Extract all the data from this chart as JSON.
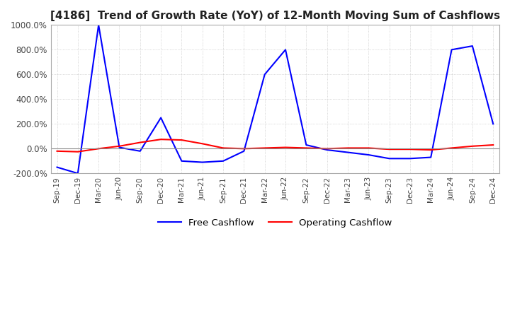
{
  "title": "[4186]  Trend of Growth Rate (YoY) of 12-Month Moving Sum of Cashflows",
  "title_fontsize": 11,
  "ylim": [
    -200,
    1000
  ],
  "yticks": [
    -200,
    0,
    200,
    400,
    600,
    800,
    1000
  ],
  "yticklabels": [
    "-200.0%",
    "0.0%",
    "200.0%",
    "400.0%",
    "600.0%",
    "800.0%",
    "1000.0%"
  ],
  "background_color": "#ffffff",
  "grid_color": "#bbbbbb",
  "operating_color": "#ff0000",
  "free_color": "#0000ff",
  "x_labels": [
    "Sep-19",
    "Dec-19",
    "Mar-20",
    "Jun-20",
    "Sep-20",
    "Dec-20",
    "Mar-21",
    "Jun-21",
    "Sep-21",
    "Dec-21",
    "Mar-22",
    "Jun-22",
    "Sep-22",
    "Dec-22",
    "Mar-23",
    "Jun-23",
    "Sep-23",
    "Dec-23",
    "Mar-24",
    "Jun-24",
    "Sep-24",
    "Dec-24"
  ],
  "operating_cashflow": [
    -20,
    -25,
    0,
    20,
    50,
    75,
    70,
    40,
    5,
    0,
    5,
    10,
    5,
    0,
    5,
    5,
    -5,
    -5,
    -10,
    5,
    20,
    30
  ],
  "free_cashflow": [
    -150,
    -200,
    1000,
    10,
    -20,
    250,
    -100,
    -110,
    -100,
    -20,
    600,
    800,
    30,
    -10,
    -30,
    -50,
    -80,
    -80,
    -70,
    800,
    830,
    200
  ]
}
